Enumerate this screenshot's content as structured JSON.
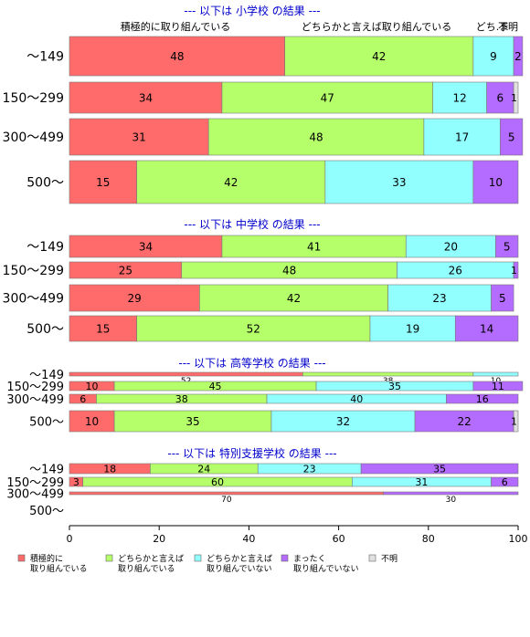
{
  "chart_data": {
    "type": "bar",
    "orientation": "horizontal",
    "stacked": true,
    "xlim": [
      0,
      100
    ],
    "x_ticks": [
      "0",
      "20",
      "40",
      "60",
      "80",
      "100"
    ],
    "colors": [
      "#FF6B6B",
      "#B5FF6B",
      "#92FFFF",
      "#B46BFF",
      "#E0E0E0"
    ],
    "top_labels": [
      "積極的に取り組んでいる",
      "どちらかと言えば取り組んでいる",
      "どち.ま",
      "不明"
    ],
    "panels": [
      {
        "title": "--- 以下は 小学校 の結果 ---",
        "categories": [
          "～149",
          "150～299",
          "300～499",
          "500～"
        ],
        "rows": [
          [
            48,
            42,
            9,
            2,
            0
          ],
          [
            34,
            47,
            12,
            6,
            1
          ],
          [
            31,
            48,
            17,
            5,
            0
          ],
          [
            15,
            42,
            33,
            10,
            0
          ]
        ]
      },
      {
        "title": "--- 以下は 中学校 の結果 ---",
        "categories": [
          "～149",
          "150～299",
          "300～499",
          "500～"
        ],
        "rows": [
          [
            34,
            41,
            20,
            5,
            0
          ],
          [
            25,
            48,
            26,
            1,
            0
          ],
          [
            29,
            42,
            23,
            5,
            0
          ],
          [
            15,
            52,
            19,
            14,
            0
          ]
        ]
      },
      {
        "title": "--- 以下は 高等学校 の結果 ---",
        "categories": [
          "～149",
          "150～299",
          "300～499",
          "500～"
        ],
        "rows": [
          [
            52,
            38,
            10,
            0,
            0
          ],
          [
            10,
            45,
            35,
            11,
            0
          ],
          [
            6,
            38,
            40,
            16,
            0
          ],
          [
            10,
            35,
            32,
            22,
            1
          ]
        ]
      },
      {
        "title": "--- 以下は 特別支援学校 の結果 ---",
        "categories": [
          "～149",
          "150～299",
          "300～499",
          "500～"
        ],
        "rows": [
          [
            18,
            24,
            23,
            35,
            0
          ],
          [
            3,
            60,
            31,
            6,
            0
          ],
          [
            70,
            0,
            0,
            30,
            0
          ],
          [
            0,
            0,
            0,
            0,
            0
          ]
        ]
      }
    ],
    "legend": {
      "position": "bottom",
      "items": [
        [
          "積極的に",
          "取り組んでいる"
        ],
        [
          "どちらかと言えば",
          "取り組んでいる"
        ],
        [
          "どちらかと言えば",
          "取り組んでいない"
        ],
        [
          "まったく",
          "取り組んでいない"
        ],
        [
          "不明"
        ]
      ]
    }
  }
}
